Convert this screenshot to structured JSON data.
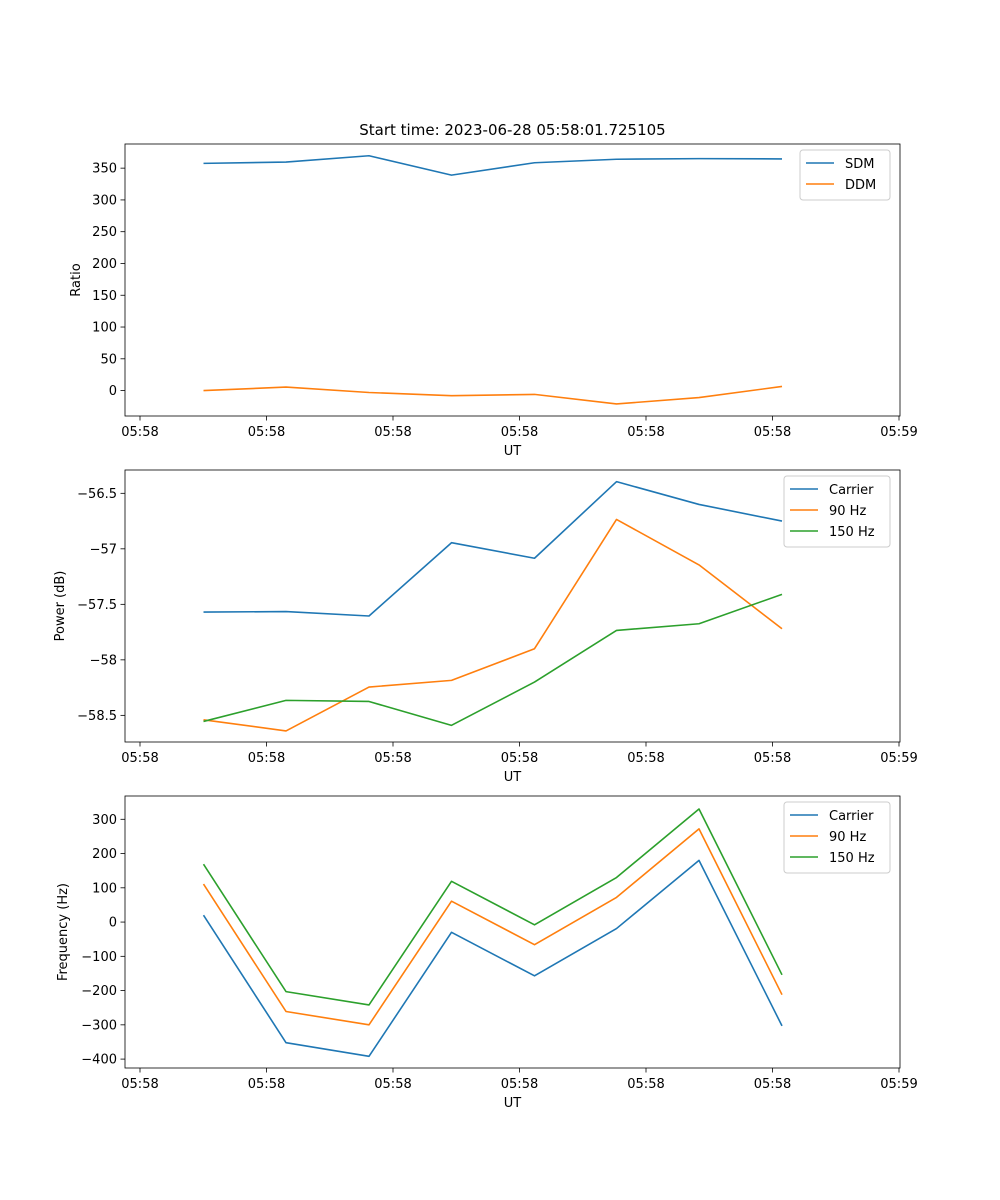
{
  "figure_title": "Start time: 2023-06-28 05:58:01.725105",
  "chart_data": [
    {
      "type": "line",
      "xlabel": "UT",
      "ylabel": "Ratio",
      "x_tick_labels": [
        "05:58",
        "05:58",
        "05:58",
        "05:58",
        "05:58",
        "05:58",
        "05:59"
      ],
      "y_ticks": [
        0,
        50,
        100,
        150,
        200,
        250,
        300,
        350
      ],
      "ylim": [
        -40,
        388
      ],
      "legend_position": "upper right",
      "series": [
        {
          "name": "SDM",
          "color": "#1f77b4",
          "values": [
            357.5,
            359.5,
            369.5,
            339.0,
            358.5,
            364.0,
            365.0,
            364.5
          ]
        },
        {
          "name": "DDM",
          "color": "#ff7f0e",
          "values": [
            0.0,
            5.5,
            -3.0,
            -8.0,
            -6.0,
            -21.0,
            -11.0,
            6.5
          ]
        }
      ]
    },
    {
      "type": "line",
      "xlabel": "UT",
      "ylabel": "Power (dB)",
      "x_tick_labels": [
        "05:58",
        "05:58",
        "05:58",
        "05:58",
        "05:58",
        "05:58",
        "05:59"
      ],
      "y_ticks": [
        -58.5,
        -58.0,
        -57.5,
        -57.0,
        -56.5
      ],
      "ylim": [
        -58.74,
        -56.29
      ],
      "legend_position": "upper right",
      "series": [
        {
          "name": "Carrier",
          "color": "#1f77b4",
          "values": [
            -57.57,
            -57.565,
            -57.605,
            -56.945,
            -57.085,
            -56.395,
            -56.6,
            -56.75
          ]
        },
        {
          "name": "90 Hz",
          "color": "#ff7f0e",
          "values": [
            -58.54,
            -58.64,
            -58.245,
            -58.185,
            -57.9,
            -56.735,
            -57.145,
            -57.72
          ]
        },
        {
          "name": "150 Hz",
          "color": "#2ca02c",
          "values": [
            -58.555,
            -58.365,
            -58.375,
            -58.59,
            -58.2,
            -57.735,
            -57.675,
            -57.41
          ]
        }
      ]
    },
    {
      "type": "line",
      "xlabel": "UT",
      "ylabel": "Frequency (Hz)",
      "x_tick_labels": [
        "05:58",
        "05:58",
        "05:58",
        "05:58",
        "05:58",
        "05:58",
        "05:59"
      ],
      "y_ticks": [
        -400,
        -300,
        -200,
        -100,
        0,
        100,
        200,
        300
      ],
      "ylim": [
        -426,
        368
      ],
      "legend_position": "upper right",
      "series": [
        {
          "name": "Carrier",
          "color": "#1f77b4",
          "values": [
            20,
            -352,
            -392,
            -30,
            -157,
            -19,
            180,
            -303
          ]
        },
        {
          "name": "90 Hz",
          "color": "#ff7f0e",
          "values": [
            111,
            -261,
            -300,
            61,
            -66,
            72,
            272,
            -212
          ]
        },
        {
          "name": "150 Hz",
          "color": "#2ca02c",
          "values": [
            169,
            -203,
            -242,
            119,
            -8,
            130,
            330,
            -154
          ]
        }
      ]
    }
  ]
}
